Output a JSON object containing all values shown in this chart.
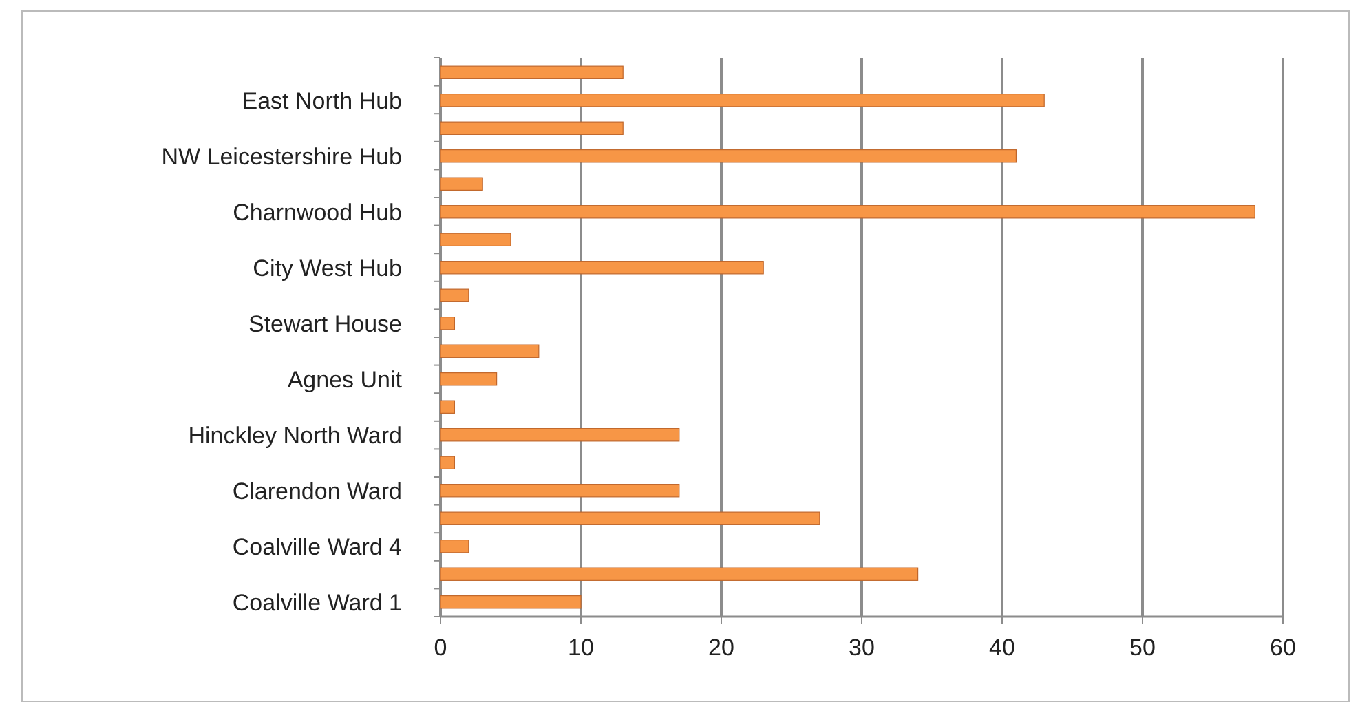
{
  "chart_data": {
    "type": "bar",
    "orientation": "horizontal",
    "categories": [
      null,
      "East North Hub",
      null,
      "NW Leicestershire Hub",
      null,
      "Charnwood Hub",
      null,
      "City West Hub",
      null,
      "Stewart House",
      null,
      "Agnes Unit",
      null,
      "Hinckley North Ward",
      null,
      "Clarendon Ward",
      null,
      "Coalville Ward 4",
      null,
      "Coalville Ward 1"
    ],
    "values": [
      13,
      43,
      13,
      41,
      3,
      58,
      5,
      23,
      2,
      1,
      7,
      4,
      1,
      17,
      1,
      17,
      27,
      2,
      34,
      10
    ],
    "color": "#f79646",
    "xlim": [
      0,
      60
    ],
    "xticks": [
      0,
      10,
      20,
      30,
      40,
      50,
      60
    ],
    "grid": "x"
  }
}
